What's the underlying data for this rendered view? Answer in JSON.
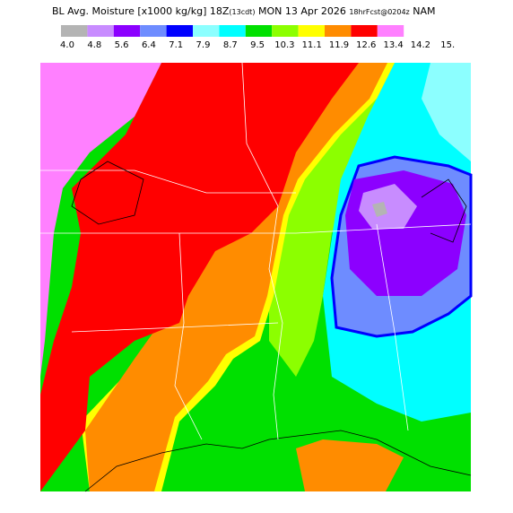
{
  "header": {
    "title_main": "BL Avg. Moisture [x1000 kg/kg] 18Z",
    "title_small1": "(13cdt)",
    "title_mid": " MON 13 Apr 2026 ",
    "title_small2": "18hrFcst@0204z",
    "title_end": " NAM"
  },
  "legend": {
    "labels": [
      "4.0",
      "4.8",
      "5.6",
      "6.4",
      "7.1",
      "7.9",
      "8.7",
      "9.5",
      "10.3",
      "11.1",
      "11.9",
      "12.6",
      "13.4",
      "14.2",
      "15."
    ],
    "colors": [
      "#b4b4b4",
      "#c88cff",
      "#8c00ff",
      "#6e8cff",
      "#0000ff",
      "#8cffff",
      "#00ffff",
      "#00e000",
      "#8cff00",
      "#ffff00",
      "#ff8c00",
      "#ff0000",
      "#ff80ff"
    ]
  }
}
